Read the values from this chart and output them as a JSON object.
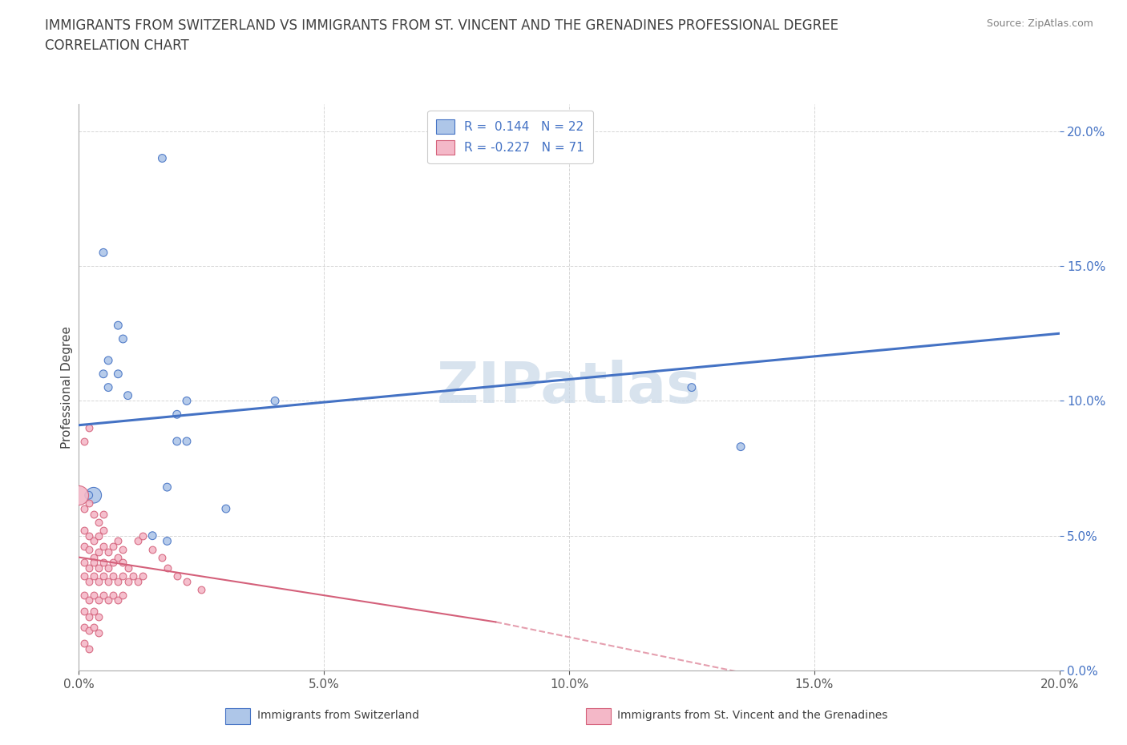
{
  "title_line1": "IMMIGRANTS FROM SWITZERLAND VS IMMIGRANTS FROM ST. VINCENT AND THE GRENADINES PROFESSIONAL DEGREE",
  "title_line2": "CORRELATION CHART",
  "source": "Source: ZipAtlas.com",
  "ylabel": "Professional Degree",
  "xlim": [
    0.0,
    0.2
  ],
  "ylim": [
    0.0,
    0.21
  ],
  "yticks": [
    0.0,
    0.05,
    0.1,
    0.15,
    0.2
  ],
  "xticks": [
    0.0,
    0.05,
    0.1,
    0.15,
    0.2
  ],
  "watermark": "ZIPatlas",
  "legend_entries": [
    {
      "label": "Immigrants from Switzerland",
      "color": "#aec6e8",
      "edge": "#4472c4",
      "R": "0.144",
      "N": "22"
    },
    {
      "label": "Immigrants from St. Vincent and the Grenadines",
      "color": "#f4b8c8",
      "edge": "#d4607a",
      "R": "-0.227",
      "N": "71"
    }
  ],
  "swiss_line_color": "#4472c4",
  "stvincent_line_color": "#d4607a",
  "grid_color": "#cccccc",
  "bg_color": "#ffffff",
  "title_color": "#404040",
  "tick_color": "#4472c4",
  "watermark_color": "#c8d8e8",
  "swiss_points": [
    [
      0.017,
      0.19
    ],
    [
      0.005,
      0.155
    ],
    [
      0.008,
      0.128
    ],
    [
      0.009,
      0.123
    ],
    [
      0.006,
      0.115
    ],
    [
      0.005,
      0.11
    ],
    [
      0.006,
      0.105
    ],
    [
      0.008,
      0.11
    ],
    [
      0.01,
      0.102
    ],
    [
      0.003,
      0.065
    ],
    [
      0.02,
      0.095
    ],
    [
      0.022,
      0.1
    ],
    [
      0.02,
      0.085
    ],
    [
      0.022,
      0.085
    ],
    [
      0.04,
      0.1
    ],
    [
      0.018,
      0.068
    ],
    [
      0.03,
      0.06
    ],
    [
      0.015,
      0.05
    ],
    [
      0.018,
      0.048
    ],
    [
      0.125,
      0.105
    ],
    [
      0.135,
      0.083
    ],
    [
      0.002,
      0.065
    ]
  ],
  "swiss_sizes": [
    50,
    50,
    50,
    50,
    50,
    50,
    50,
    50,
    50,
    200,
    50,
    50,
    50,
    50,
    50,
    50,
    50,
    50,
    50,
    50,
    50,
    50
  ],
  "stvincent_points": [
    [
      0.001,
      0.085
    ],
    [
      0.002,
      0.09
    ],
    [
      0.001,
      0.06
    ],
    [
      0.002,
      0.062
    ],
    [
      0.003,
      0.058
    ],
    [
      0.004,
      0.055
    ],
    [
      0.005,
      0.058
    ],
    [
      0.001,
      0.052
    ],
    [
      0.002,
      0.05
    ],
    [
      0.003,
      0.048
    ],
    [
      0.004,
      0.05
    ],
    [
      0.005,
      0.052
    ],
    [
      0.001,
      0.046
    ],
    [
      0.002,
      0.045
    ],
    [
      0.003,
      0.042
    ],
    [
      0.004,
      0.044
    ],
    [
      0.005,
      0.046
    ],
    [
      0.006,
      0.044
    ],
    [
      0.007,
      0.046
    ],
    [
      0.008,
      0.048
    ],
    [
      0.009,
      0.045
    ],
    [
      0.001,
      0.04
    ],
    [
      0.002,
      0.038
    ],
    [
      0.003,
      0.04
    ],
    [
      0.004,
      0.038
    ],
    [
      0.005,
      0.04
    ],
    [
      0.006,
      0.038
    ],
    [
      0.007,
      0.04
    ],
    [
      0.008,
      0.042
    ],
    [
      0.009,
      0.04
    ],
    [
      0.01,
      0.038
    ],
    [
      0.001,
      0.035
    ],
    [
      0.002,
      0.033
    ],
    [
      0.003,
      0.035
    ],
    [
      0.004,
      0.033
    ],
    [
      0.005,
      0.035
    ],
    [
      0.006,
      0.033
    ],
    [
      0.007,
      0.035
    ],
    [
      0.008,
      0.033
    ],
    [
      0.009,
      0.035
    ],
    [
      0.01,
      0.033
    ],
    [
      0.011,
      0.035
    ],
    [
      0.012,
      0.033
    ],
    [
      0.013,
      0.035
    ],
    [
      0.001,
      0.028
    ],
    [
      0.002,
      0.026
    ],
    [
      0.003,
      0.028
    ],
    [
      0.004,
      0.026
    ],
    [
      0.005,
      0.028
    ],
    [
      0.006,
      0.026
    ],
    [
      0.007,
      0.028
    ],
    [
      0.008,
      0.026
    ],
    [
      0.009,
      0.028
    ],
    [
      0.001,
      0.022
    ],
    [
      0.002,
      0.02
    ],
    [
      0.003,
      0.022
    ],
    [
      0.004,
      0.02
    ],
    [
      0.001,
      0.016
    ],
    [
      0.002,
      0.015
    ],
    [
      0.003,
      0.016
    ],
    [
      0.004,
      0.014
    ],
    [
      0.001,
      0.01
    ],
    [
      0.002,
      0.008
    ],
    [
      0.012,
      0.048
    ],
    [
      0.013,
      0.05
    ],
    [
      0.015,
      0.045
    ],
    [
      0.017,
      0.042
    ],
    [
      0.018,
      0.038
    ],
    [
      0.02,
      0.035
    ],
    [
      0.022,
      0.033
    ],
    [
      0.025,
      0.03
    ]
  ],
  "stvincent_large": [
    [
      0.0,
      0.065
    ]
  ],
  "stvincent_large_sizes": [
    300
  ]
}
